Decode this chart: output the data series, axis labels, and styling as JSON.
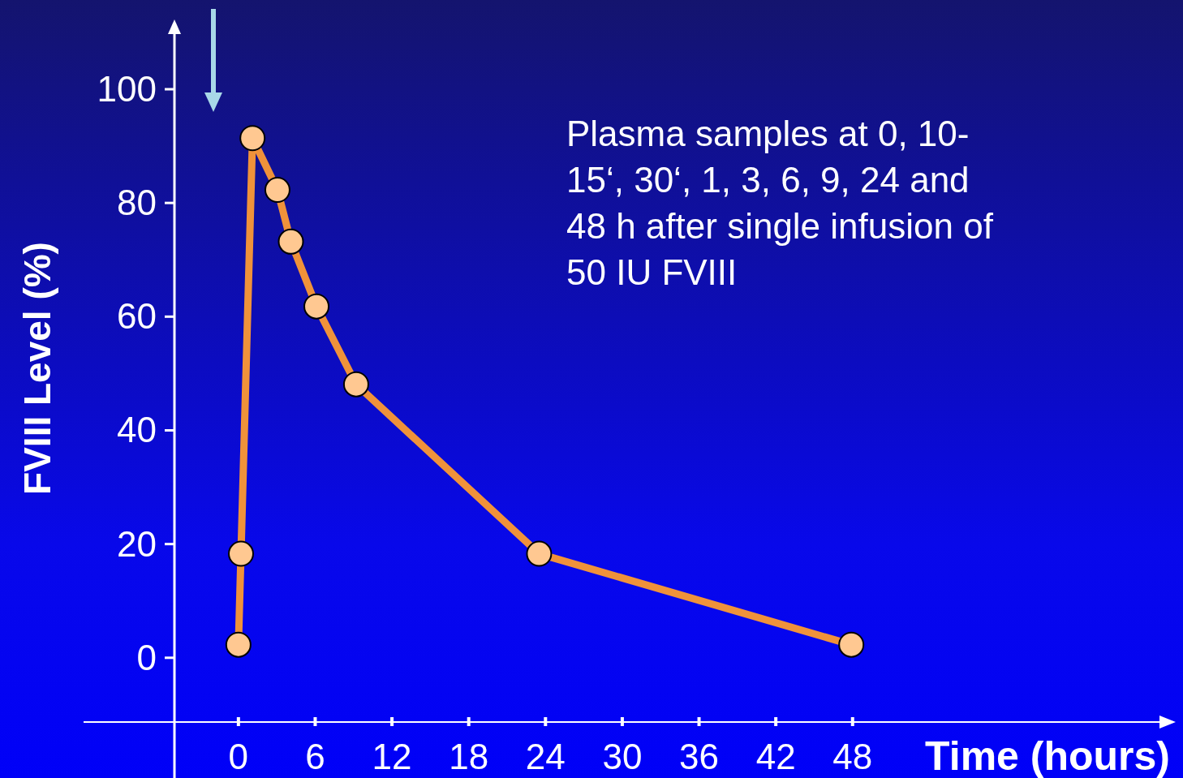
{
  "chart_data": {
    "type": "line",
    "xlabel": "Time (hours)",
    "ylabel": "FVIII Level (%)",
    "x": [
      0,
      0.2,
      1.1,
      3.05,
      4.1,
      6.1,
      9.2,
      23.5,
      47.9
    ],
    "series": [
      {
        "color": "#f0923a",
        "values": [
          2.3,
          18.3,
          91.4,
          82.3,
          73.2,
          61.8,
          48.1,
          18.3,
          2.3
        ]
      }
    ],
    "xlim": [
      -5,
      73
    ],
    "ylim": [
      -11.3,
      111.7
    ],
    "xticks": [
      0,
      6,
      12,
      18,
      24,
      30,
      36,
      42,
      48
    ],
    "yticks": [
      0,
      20,
      40,
      60,
      80,
      100
    ],
    "marker": "circle",
    "line_style": "solid",
    "grid": false,
    "annotations": [
      "Plasma samples at 0, 10-\n15‘, 30‘, 1, 3, 6, 9, 24 and\n48 h after single infusion of\n50 IU FVIII"
    ]
  }
}
